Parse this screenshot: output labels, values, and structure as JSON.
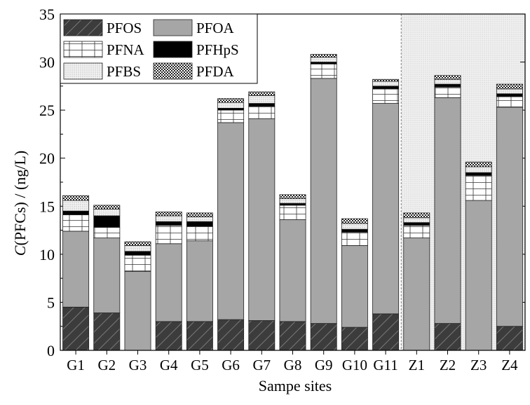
{
  "chart_data": {
    "type": "bar",
    "stacked": true,
    "xlabel": "Sampe sites",
    "ylabel_italic": "C",
    "ylabel_rest": "(PFCs) / (ng/L)",
    "ylim": [
      0,
      35
    ],
    "yticks": [
      "0",
      "5",
      "10",
      "15",
      "20",
      "25",
      "30",
      "35"
    ],
    "legend_position": "top-left",
    "highlighted_region": [
      "Z1",
      "Z2",
      "Z3",
      "Z4"
    ],
    "categories": [
      "G1",
      "G2",
      "G3",
      "G4",
      "G5",
      "G6",
      "G7",
      "G8",
      "G9",
      "G10",
      "G11",
      "Z1",
      "Z2",
      "Z3",
      "Z4"
    ],
    "series": [
      {
        "name": "PFOS",
        "pattern": "hatch-dark",
        "values": [
          4.5,
          3.9,
          0.0,
          3.0,
          3.0,
          3.2,
          3.1,
          3.0,
          2.8,
          2.4,
          3.8,
          0.0,
          2.8,
          0.0,
          2.5
        ]
      },
      {
        "name": "PFOA",
        "pattern": "gray",
        "values": [
          7.9,
          7.8,
          8.2,
          8.1,
          8.4,
          20.5,
          21.0,
          10.6,
          25.5,
          8.5,
          21.9,
          11.7,
          23.5,
          15.6,
          22.8
        ]
      },
      {
        "name": "PFNA",
        "pattern": "grid",
        "values": [
          1.7,
          1.1,
          1.7,
          1.9,
          1.5,
          1.3,
          1.3,
          1.5,
          1.5,
          1.4,
          1.5,
          1.3,
          1.1,
          2.6,
          1.1
        ]
      },
      {
        "name": "PFHpS",
        "pattern": "black",
        "values": [
          0.4,
          1.2,
          0.4,
          0.4,
          0.5,
          0.2,
          0.3,
          0.2,
          0.2,
          0.3,
          0.3,
          0.3,
          0.3,
          0.3,
          0.3
        ]
      },
      {
        "name": "PFBS",
        "pattern": "dots",
        "values": [
          1.1,
          0.7,
          0.6,
          0.6,
          0.5,
          0.6,
          0.8,
          0.5,
          0.5,
          0.6,
          0.5,
          0.5,
          0.5,
          0.6,
          0.5
        ]
      },
      {
        "name": "PFDA",
        "pattern": "checker",
        "values": [
          0.5,
          0.4,
          0.4,
          0.4,
          0.4,
          0.4,
          0.4,
          0.4,
          0.3,
          0.5,
          0.2,
          0.5,
          0.4,
          0.5,
          0.5
        ]
      }
    ]
  }
}
